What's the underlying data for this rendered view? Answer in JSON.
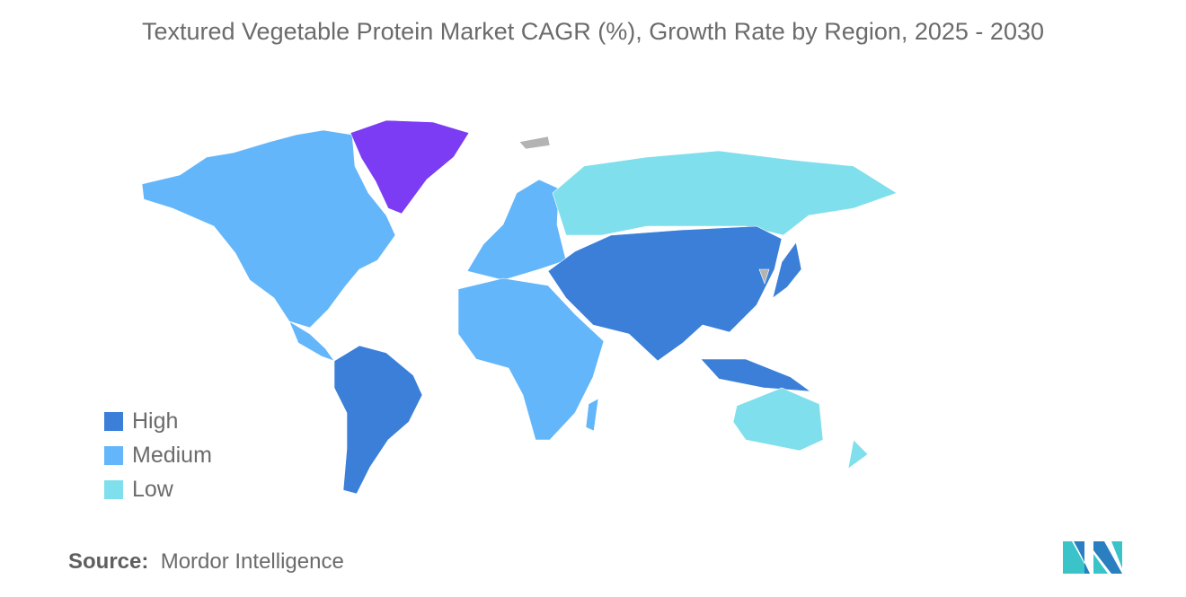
{
  "title": "Textured Vegetable Protein Market CAGR (%), Growth Rate by Region, 2025 - 2030",
  "legend": [
    {
      "label": "High",
      "color": "#3b7fd8"
    },
    {
      "label": "Medium",
      "color": "#64b6fa"
    },
    {
      "label": "Low",
      "color": "#7fdfec"
    }
  ],
  "colors": {
    "highlight": "#7c3cf4",
    "no_data": "#b3b3b3"
  },
  "regions": [
    {
      "name": "north-america",
      "category": "Medium"
    },
    {
      "name": "central-america",
      "category": "Medium"
    },
    {
      "name": "greenland",
      "category": "highlight"
    },
    {
      "name": "south-america",
      "category": "High"
    },
    {
      "name": "europe",
      "category": "Medium"
    },
    {
      "name": "africa",
      "category": "Medium"
    },
    {
      "name": "madagascar",
      "category": "Medium"
    },
    {
      "name": "russia",
      "category": "Low"
    },
    {
      "name": "asia",
      "category": "High"
    },
    {
      "name": "japan",
      "category": "High"
    },
    {
      "name": "indonesia",
      "category": "High"
    },
    {
      "name": "australia",
      "category": "Low"
    },
    {
      "name": "new-zealand",
      "category": "Low"
    },
    {
      "name": "korea",
      "category": "no_data"
    },
    {
      "name": "svalbard",
      "category": "no_data"
    }
  ],
  "source": {
    "label": "Source:",
    "value": "Mordor Intelligence"
  }
}
